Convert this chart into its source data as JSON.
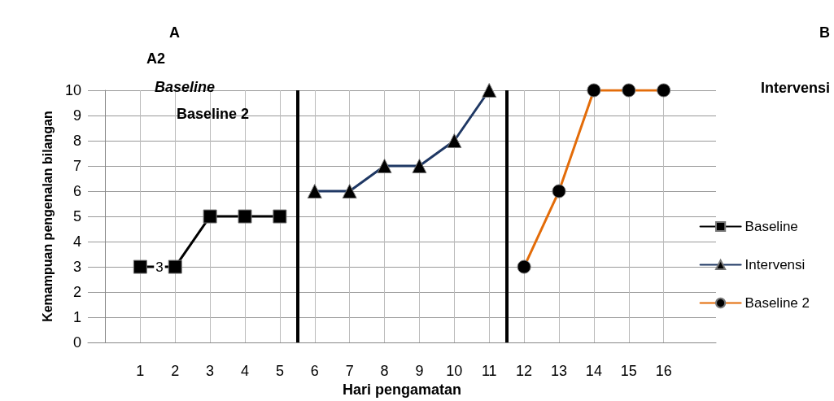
{
  "chart_data": {
    "type": "line",
    "xlabel": "Hari pengamatan",
    "ylabel": "Kemampuan pengenalan bilangan",
    "annotations": [
      "A",
      "A2",
      "Baseline",
      "Baseline 2",
      "B",
      "Intervensi"
    ],
    "xlim": [
      -0.5,
      17.5
    ],
    "xticks": [
      1,
      2,
      3,
      4,
      5,
      6,
      7,
      8,
      9,
      10,
      11,
      12,
      13,
      14,
      15,
      16
    ],
    "ylim": [
      0,
      10
    ],
    "yticks": [
      0,
      1,
      2,
      3,
      4,
      5,
      6,
      7,
      8,
      9,
      10
    ],
    "grid": true,
    "legend": "right",
    "ref_lines": [
      {
        "axis": "x",
        "value": 5.5,
        "color": "#000000"
      },
      {
        "axis": "x",
        "value": 11.5,
        "color": "#000000"
      }
    ],
    "series": [
      {
        "name": "Baseline",
        "color": "#000000",
        "marker": "square",
        "x": [
          1,
          2,
          3,
          4,
          5
        ],
        "values": [
          3,
          3,
          5,
          5,
          5
        ],
        "value_labels": [
          null,
          "3",
          null,
          null,
          null
        ]
      },
      {
        "name": "Intervensi",
        "color": "#1f3864",
        "marker": "triangle",
        "x": [
          6,
          7,
          8,
          9,
          10,
          11
        ],
        "values": [
          6,
          6,
          7,
          7,
          8,
          10
        ]
      },
      {
        "name": "Baseline 2",
        "color": "#e36c09",
        "marker": "circle",
        "x": [
          12,
          13,
          14,
          15,
          16
        ],
        "values": [
          3,
          6,
          10,
          10,
          10
        ]
      }
    ]
  }
}
